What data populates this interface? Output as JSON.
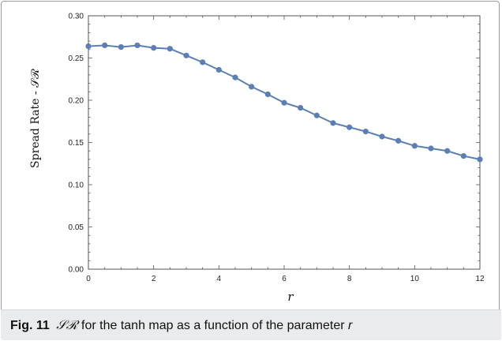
{
  "caption": {
    "label": "Fig. 11",
    "sr_symbol": "𝒮ℛ",
    "text_before_var": "for the tanh map as a function of the parameter",
    "var": "r"
  },
  "chart_data": {
    "type": "line",
    "title": "",
    "xlabel": "r",
    "ylabel": "Spread Rate - 𝒮ℛ",
    "xlim": [
      0,
      12
    ],
    "ylim": [
      0,
      0.3
    ],
    "xticks": [
      0,
      2,
      4,
      6,
      8,
      10,
      12
    ],
    "yticks": [
      0.0,
      0.05,
      0.1,
      0.15,
      0.2,
      0.25,
      0.3
    ],
    "ytick_labels": [
      "0.00",
      "0.05",
      "0.10",
      "0.15",
      "0.20",
      "0.25",
      "0.30"
    ],
    "grid": false,
    "series": [
      {
        "color": "#5b7fb5",
        "x": [
          0,
          0.5,
          1,
          1.5,
          2,
          2.5,
          3,
          3.5,
          4,
          4.5,
          5,
          5.5,
          6,
          6.5,
          7,
          7.5,
          8,
          8.5,
          9,
          9.5,
          10,
          10.5,
          11,
          11.5,
          12
        ],
        "y": [
          0.264,
          0.265,
          0.263,
          0.265,
          0.262,
          0.261,
          0.253,
          0.245,
          0.236,
          0.227,
          0.216,
          0.207,
          0.197,
          0.191,
          0.182,
          0.173,
          0.168,
          0.163,
          0.157,
          0.152,
          0.146,
          0.143,
          0.14,
          0.134,
          0.13
        ]
      }
    ]
  }
}
